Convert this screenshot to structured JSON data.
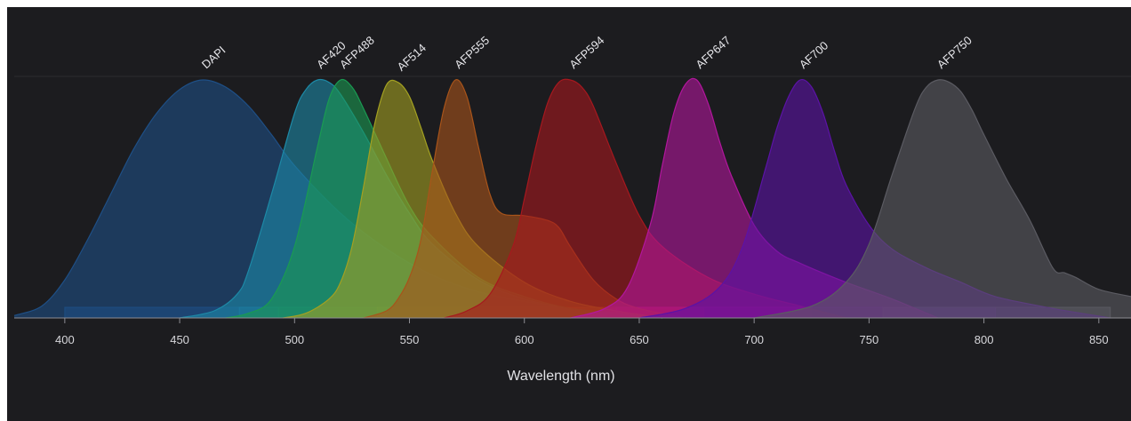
{
  "chart_data": {
    "type": "area",
    "xlabel": "Wavelength (nm)",
    "ylabel": "",
    "xlim": [
      378,
      864
    ],
    "ylim": [
      0,
      1
    ],
    "xticks": [
      400,
      450,
      500,
      550,
      600,
      650,
      700,
      750,
      800,
      850
    ],
    "background": "#1c1c1f",
    "series": [
      {
        "name": "DAPI",
        "color": "#1e4f86",
        "x": [
          378,
          390,
          400,
          410,
          420,
          430,
          440,
          450,
          460,
          470,
          480,
          490,
          500,
          520,
          540,
          560,
          580,
          600,
          620,
          640,
          660
        ],
        "y": [
          0.01,
          0.05,
          0.16,
          0.33,
          0.52,
          0.71,
          0.86,
          0.96,
          1.0,
          0.97,
          0.89,
          0.77,
          0.64,
          0.44,
          0.29,
          0.18,
          0.11,
          0.07,
          0.04,
          0.02,
          0.0
        ],
        "band": [
          400,
          476
        ]
      },
      {
        "name": "AF420",
        "color": "#1d89a6",
        "x": [
          450,
          465,
          475,
          480,
          490,
          500,
          505,
          510,
          515,
          520,
          530,
          540,
          550,
          560,
          580,
          600,
          620,
          640,
          660
        ],
        "y": [
          0.0,
          0.03,
          0.1,
          0.2,
          0.52,
          0.86,
          0.96,
          1.0,
          0.99,
          0.94,
          0.78,
          0.6,
          0.44,
          0.31,
          0.16,
          0.08,
          0.04,
          0.02,
          0.0
        ],
        "band": [
          476,
          493
        ]
      },
      {
        "name": "AFP488",
        "color": "#1a9a52",
        "x": [
          470,
          480,
          490,
          500,
          510,
          515,
          520,
          525,
          530,
          540,
          550,
          560,
          580,
          600,
          620,
          640,
          660
        ],
        "y": [
          0.0,
          0.02,
          0.08,
          0.3,
          0.72,
          0.92,
          1.0,
          0.97,
          0.88,
          0.67,
          0.47,
          0.34,
          0.17,
          0.09,
          0.04,
          0.02,
          0.0
        ],
        "band": [
          493,
          540
        ]
      },
      {
        "name": "AF514",
        "color": "#a3a021",
        "x": [
          495,
          505,
          515,
          520,
          525,
          530,
          535,
          540,
          545,
          550,
          555,
          560,
          570,
          580,
          600,
          620,
          640,
          660
        ],
        "y": [
          0.0,
          0.02,
          0.08,
          0.15,
          0.3,
          0.55,
          0.82,
          0.98,
          0.99,
          0.93,
          0.8,
          0.66,
          0.44,
          0.3,
          0.15,
          0.07,
          0.03,
          0.0
        ],
        "band": [
          536,
          582
        ]
      },
      {
        "name": "AFP555",
        "color": "#a8541a",
        "x": [
          530,
          540,
          545,
          550,
          555,
          560,
          565,
          570,
          575,
          580,
          585,
          590,
          600,
          610,
          615,
          620,
          630,
          640,
          650,
          670
        ],
        "y": [
          0.0,
          0.03,
          0.08,
          0.17,
          0.33,
          0.62,
          0.88,
          1.0,
          0.93,
          0.72,
          0.52,
          0.44,
          0.43,
          0.41,
          0.38,
          0.3,
          0.16,
          0.08,
          0.04,
          0.0
        ],
        "band": [
          582,
          640
        ]
      },
      {
        "name": "AFP594",
        "color": "#a6181e",
        "x": [
          565,
          575,
          585,
          595,
          600,
          605,
          610,
          615,
          620,
          625,
          630,
          640,
          650,
          660,
          680,
          700,
          720,
          740
        ],
        "y": [
          0.0,
          0.03,
          0.1,
          0.3,
          0.5,
          0.72,
          0.9,
          0.99,
          1.0,
          0.97,
          0.89,
          0.65,
          0.43,
          0.3,
          0.17,
          0.1,
          0.05,
          0.0
        ],
        "band": [
          636,
          678
        ]
      },
      {
        "name": "AFP647",
        "color": "#b2169d",
        "x": [
          620,
          635,
          645,
          655,
          660,
          665,
          670,
          675,
          680,
          685,
          690,
          700,
          710,
          720,
          740,
          760,
          780
        ],
        "y": [
          0.0,
          0.04,
          0.13,
          0.4,
          0.64,
          0.86,
          0.98,
          1.0,
          0.9,
          0.74,
          0.6,
          0.39,
          0.28,
          0.23,
          0.15,
          0.08,
          0.0
        ],
        "band": [
          640,
          725
        ]
      },
      {
        "name": "AF700",
        "color": "#5b13a6",
        "x": [
          650,
          670,
          685,
          695,
          705,
          710,
          715,
          720,
          725,
          730,
          735,
          740,
          750,
          760,
          775,
          790,
          805,
          830,
          855
        ],
        "y": [
          0.0,
          0.04,
          0.13,
          0.3,
          0.63,
          0.8,
          0.93,
          1.0,
          0.97,
          0.86,
          0.7,
          0.56,
          0.39,
          0.29,
          0.21,
          0.15,
          0.09,
          0.04,
          0.0
        ],
        "band": [
          725,
          805
        ]
      },
      {
        "name": "AFP750",
        "color": "#5b5b62",
        "x": [
          700,
          725,
          740,
          750,
          760,
          770,
          775,
          780,
          785,
          790,
          795,
          800,
          810,
          820,
          830,
          835,
          840,
          850,
          864
        ],
        "y": [
          0.0,
          0.05,
          0.15,
          0.31,
          0.6,
          0.88,
          0.97,
          1.0,
          0.99,
          0.95,
          0.87,
          0.77,
          0.58,
          0.41,
          0.21,
          0.19,
          0.17,
          0.12,
          0.09
        ],
        "band": [
          756,
          855
        ]
      }
    ]
  }
}
